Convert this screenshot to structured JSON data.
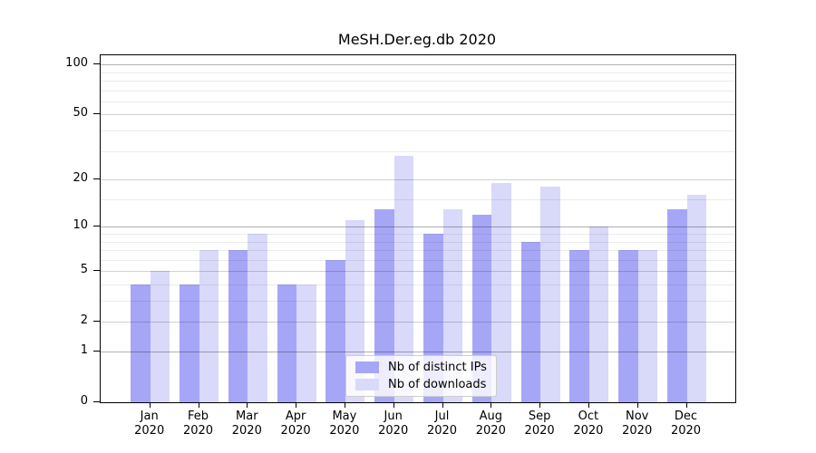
{
  "chart_data": {
    "type": "bar",
    "title": "MeSH.Der.eg.db 2020",
    "categories": [
      "Jan",
      "Feb",
      "Mar",
      "Apr",
      "May",
      "Jun",
      "Jul",
      "Aug",
      "Sep",
      "Oct",
      "Nov",
      "Dec"
    ],
    "category_year": "2020",
    "series": [
      {
        "name": "Nb of distinct IPs",
        "color": "#a6a6f7",
        "values": [
          4,
          4,
          7,
          4,
          6,
          13,
          9,
          12,
          8,
          7,
          7,
          13
        ]
      },
      {
        "name": "Nb of downloads",
        "color": "#d9d9f9",
        "values": [
          5,
          7,
          9,
          4,
          11,
          28,
          13,
          19,
          18,
          10,
          7,
          16
        ]
      }
    ],
    "yscale": "log10(1+x)",
    "ylim": [
      0,
      113.6
    ],
    "yticks": [
      0,
      1,
      2,
      5,
      10,
      20,
      50,
      100
    ],
    "ytick_decades": [
      1,
      10,
      100
    ],
    "minor_gridlines": [
      3,
      4,
      6,
      7,
      8,
      9,
      15,
      30,
      40,
      60,
      70,
      80,
      90
    ],
    "grid": "horizontal",
    "legend_position": "bottom-center-inside",
    "plot_border_color": "#000000",
    "background_color": "#ffffff"
  }
}
